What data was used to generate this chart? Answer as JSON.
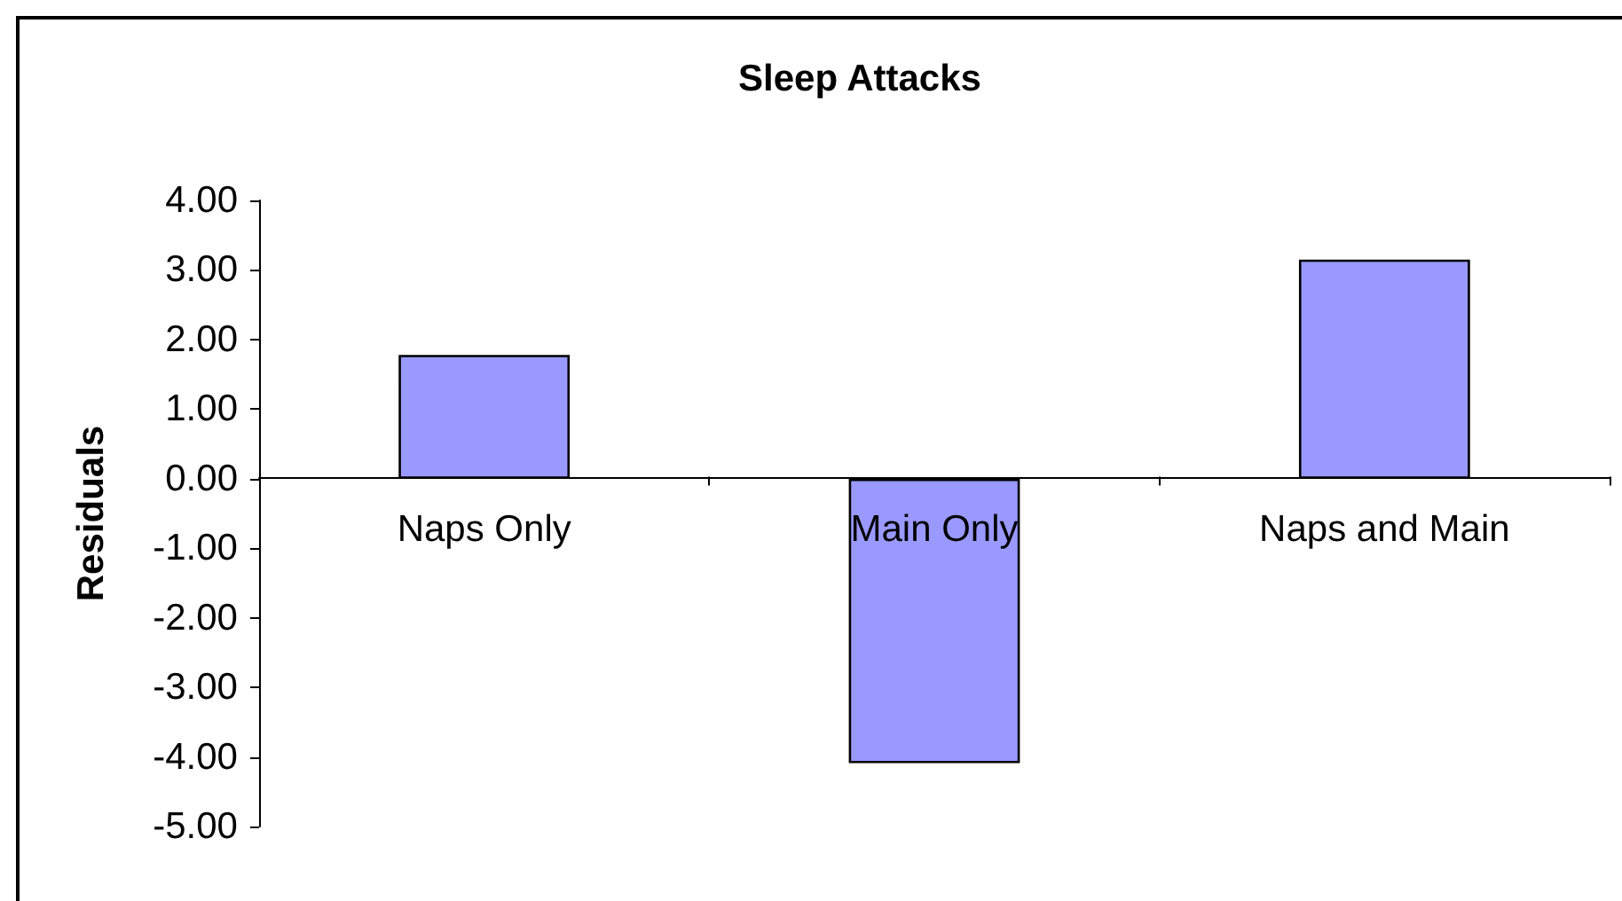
{
  "chart_data": {
    "type": "bar",
    "title": "Sleep Attacks",
    "ylabel": "Residuals",
    "categories": [
      "Naps Only",
      "Main Only",
      "Naps and Main"
    ],
    "values": [
      1.78,
      -4.09,
      3.15
    ],
    "color": "#9999ff",
    "ylim": [
      -5,
      4
    ],
    "yticks": [
      {
        "value": -5,
        "label": "-5.00"
      },
      {
        "value": -4,
        "label": "-4.00"
      },
      {
        "value": -3,
        "label": "-3.00"
      },
      {
        "value": -2,
        "label": "-2.00"
      },
      {
        "value": -1,
        "label": "-1.00"
      },
      {
        "value": 0,
        "label": "0.00"
      },
      {
        "value": 1,
        "label": "1.00"
      },
      {
        "value": 2,
        "label": "2.00"
      },
      {
        "value": 3,
        "label": "3.00"
      },
      {
        "value": 4,
        "label": "4.00"
      }
    ]
  }
}
